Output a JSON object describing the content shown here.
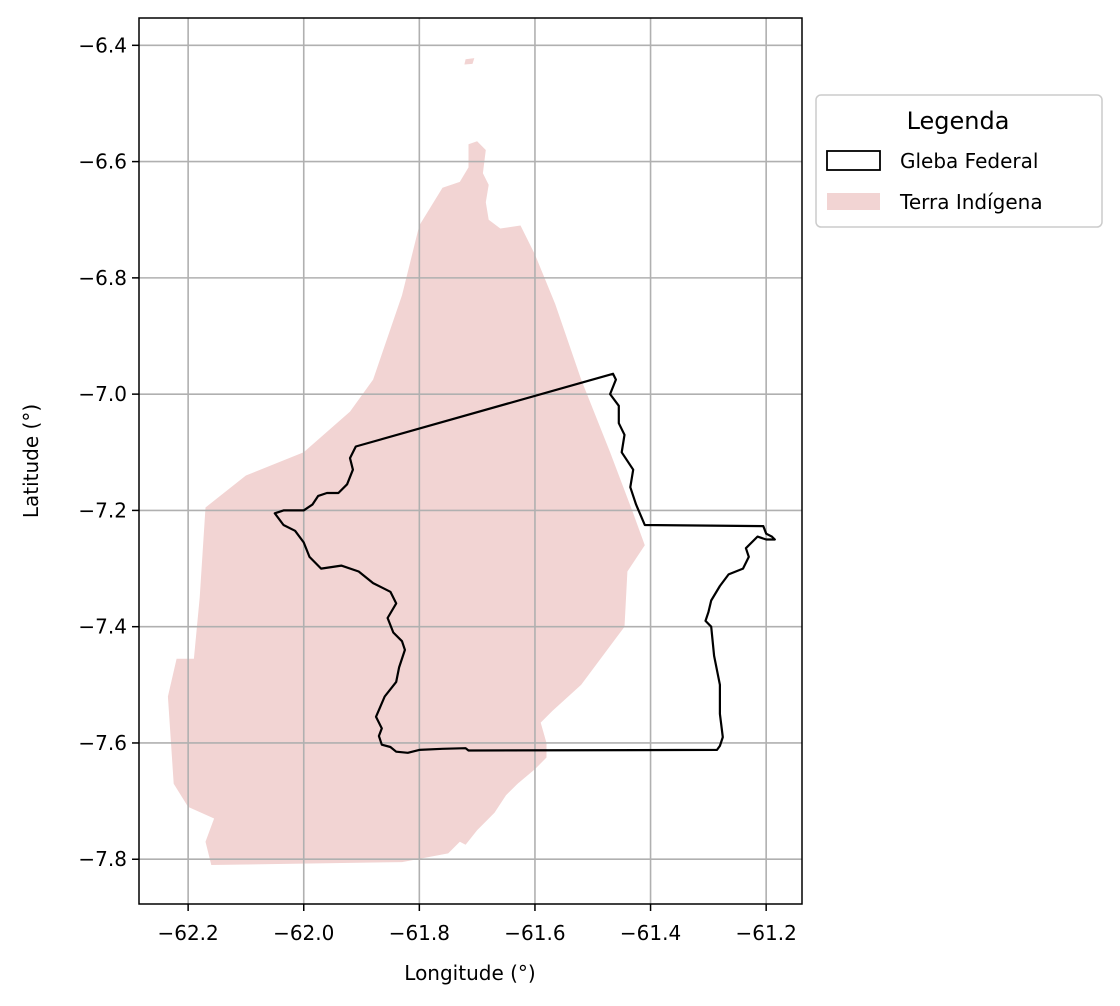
{
  "chart_data": {
    "type": "map",
    "xlabel": "Longitude (°)",
    "ylabel": "Latitude (°)",
    "xlim": [
      -62.285,
      -61.138
    ],
    "ylim": [
      -7.877,
      -6.353
    ],
    "xticks": [
      -62.2,
      -62.0,
      -61.8,
      -61.6,
      -61.4,
      -61.2
    ],
    "yticks": [
      -6.4,
      -6.6,
      -6.8,
      -7.0,
      -7.2,
      -7.4,
      -7.6,
      -7.8
    ],
    "xtick_labels": [
      "−62.2",
      "−62.0",
      "−61.8",
      "−61.6",
      "−61.4",
      "−61.2"
    ],
    "ytick_labels": [
      "−6.4",
      "−6.6",
      "−6.8",
      "−7.0",
      "−7.2",
      "−7.4",
      "−7.6",
      "−7.8"
    ],
    "grid": true,
    "legend": {
      "title": "Legenda",
      "placement": "outside-upper-right",
      "entries": [
        "Gleba Federal",
        "Terra Indígena"
      ]
    },
    "colors": {
      "terra_indigena_fill": "#f2d4d3",
      "gleba_outline": "#000000",
      "grid": "#b0b0b0"
    },
    "layers": [
      {
        "name": "Terra Indígena",
        "style": "filled",
        "polygons": [
          [
            [
              -62.235,
              -7.52
            ],
            [
              -62.22,
              -7.455
            ],
            [
              -62.19,
              -7.455
            ],
            [
              -62.18,
              -7.35
            ],
            [
              -62.17,
              -7.195
            ],
            [
              -62.1,
              -7.14
            ],
            [
              -62.0,
              -7.1
            ],
            [
              -61.92,
              -7.03
            ],
            [
              -61.88,
              -6.975
            ],
            [
              -61.83,
              -6.83
            ],
            [
              -61.8,
              -6.71
            ],
            [
              -61.76,
              -6.645
            ],
            [
              -61.73,
              -6.635
            ],
            [
              -61.715,
              -6.61
            ],
            [
              -61.715,
              -6.57
            ],
            [
              -61.7,
              -6.565
            ],
            [
              -61.685,
              -6.58
            ],
            [
              -61.69,
              -6.62
            ],
            [
              -61.68,
              -6.64
            ],
            [
              -61.685,
              -6.67
            ],
            [
              -61.68,
              -6.7
            ],
            [
              -61.66,
              -6.715
            ],
            [
              -61.625,
              -6.71
            ],
            [
              -61.6,
              -6.76
            ],
            [
              -61.565,
              -6.845
            ],
            [
              -61.52,
              -6.975
            ],
            [
              -61.47,
              -7.1
            ],
            [
              -61.43,
              -7.205
            ],
            [
              -61.41,
              -7.26
            ],
            [
              -61.44,
              -7.305
            ],
            [
              -61.445,
              -7.4
            ],
            [
              -61.52,
              -7.5
            ],
            [
              -61.57,
              -7.545
            ],
            [
              -61.59,
              -7.565
            ],
            [
              -61.58,
              -7.6
            ],
            [
              -61.58,
              -7.625
            ],
            [
              -61.6,
              -7.645
            ],
            [
              -61.63,
              -7.67
            ],
            [
              -61.65,
              -7.69
            ],
            [
              -61.67,
              -7.72
            ],
            [
              -61.7,
              -7.75
            ],
            [
              -61.72,
              -7.775
            ],
            [
              -61.73,
              -7.77
            ],
            [
              -61.75,
              -7.79
            ],
            [
              -61.83,
              -7.805
            ],
            [
              -62.16,
              -7.81
            ],
            [
              -62.17,
              -7.77
            ],
            [
              -62.155,
              -7.73
            ],
            [
              -62.2,
              -7.71
            ],
            [
              -62.225,
              -7.67
            ]
          ],
          [
            [
              -61.72,
              -6.424
            ],
            [
              -61.705,
              -6.422
            ],
            [
              -61.708,
              -6.432
            ],
            [
              -61.722,
              -6.433
            ]
          ]
        ]
      },
      {
        "name": "Gleba Federal",
        "style": "outline",
        "polygons": [
          [
            [
              -61.91,
              -7.09
            ],
            [
              -61.465,
              -6.965
            ],
            [
              -61.46,
              -6.975
            ],
            [
              -61.47,
              -7.0
            ],
            [
              -61.455,
              -7.02
            ],
            [
              -61.455,
              -7.05
            ],
            [
              -61.445,
              -7.07
            ],
            [
              -61.45,
              -7.1
            ],
            [
              -61.43,
              -7.13
            ],
            [
              -61.435,
              -7.16
            ],
            [
              -61.425,
              -7.19
            ],
            [
              -61.41,
              -7.225
            ],
            [
              -61.205,
              -7.227
            ],
            [
              -61.2,
              -7.24
            ],
            [
              -61.19,
              -7.245
            ],
            [
              -61.185,
              -7.25
            ],
            [
              -61.2,
              -7.25
            ],
            [
              -61.215,
              -7.245
            ],
            [
              -61.235,
              -7.265
            ],
            [
              -61.23,
              -7.28
            ],
            [
              -61.24,
              -7.3
            ],
            [
              -61.265,
              -7.31
            ],
            [
              -61.28,
              -7.33
            ],
            [
              -61.295,
              -7.355
            ],
            [
              -61.3,
              -7.375
            ],
            [
              -61.305,
              -7.39
            ],
            [
              -61.295,
              -7.4
            ],
            [
              -61.29,
              -7.45
            ],
            [
              -61.28,
              -7.5
            ],
            [
              -61.28,
              -7.55
            ],
            [
              -61.275,
              -7.59
            ],
            [
              -61.28,
              -7.605
            ],
            [
              -61.285,
              -7.612
            ],
            [
              -61.715,
              -7.613
            ],
            [
              -61.72,
              -7.609
            ],
            [
              -61.76,
              -7.61
            ],
            [
              -61.8,
              -7.612
            ],
            [
              -61.82,
              -7.617
            ],
            [
              -61.84,
              -7.615
            ],
            [
              -61.85,
              -7.607
            ],
            [
              -61.865,
              -7.603
            ],
            [
              -61.87,
              -7.588
            ],
            [
              -61.865,
              -7.575
            ],
            [
              -61.875,
              -7.555
            ],
            [
              -61.86,
              -7.52
            ],
            [
              -61.84,
              -7.495
            ],
            [
              -61.835,
              -7.47
            ],
            [
              -61.825,
              -7.44
            ],
            [
              -61.83,
              -7.425
            ],
            [
              -61.845,
              -7.41
            ],
            [
              -61.855,
              -7.385
            ],
            [
              -61.84,
              -7.36
            ],
            [
              -61.85,
              -7.34
            ],
            [
              -61.88,
              -7.325
            ],
            [
              -61.905,
              -7.305
            ],
            [
              -61.935,
              -7.295
            ],
            [
              -61.97,
              -7.3
            ],
            [
              -61.99,
              -7.28
            ],
            [
              -62.0,
              -7.255
            ],
            [
              -62.015,
              -7.235
            ],
            [
              -62.035,
              -7.225
            ],
            [
              -62.05,
              -7.205
            ],
            [
              -62.035,
              -7.2
            ],
            [
              -62.0,
              -7.2
            ],
            [
              -61.985,
              -7.19
            ],
            [
              -61.975,
              -7.175
            ],
            [
              -61.96,
              -7.17
            ],
            [
              -61.94,
              -7.17
            ],
            [
              -61.925,
              -7.155
            ],
            [
              -61.915,
              -7.13
            ],
            [
              -61.92,
              -7.11
            ]
          ]
        ]
      }
    ]
  }
}
